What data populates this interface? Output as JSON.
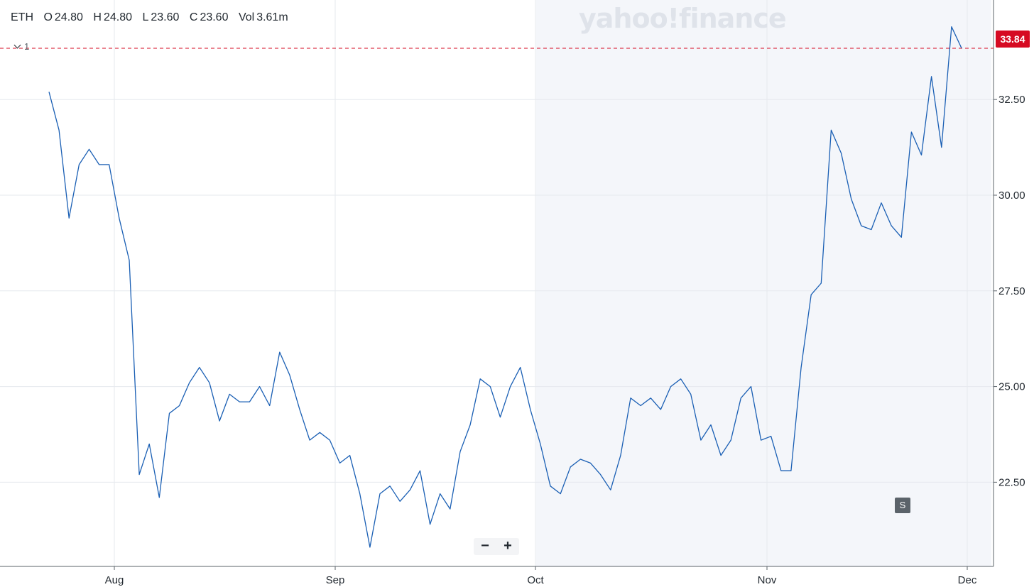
{
  "info_bar": {
    "symbol": "ETH",
    "open_label": "O",
    "open": "24.80",
    "high_label": "H",
    "high": "24.80",
    "low_label": "L",
    "low": "23.60",
    "close_label": "C",
    "close": "23.60",
    "volume_label": "Vol",
    "volume": "3.61m"
  },
  "indicator_toggle": {
    "count": "1"
  },
  "watermark": "yahoo!finance",
  "current_price": "33.84",
  "zoom": {
    "minus": "−",
    "plus": "+"
  },
  "split_badge": "S",
  "colors": {
    "line": "#1a5fb4",
    "price_line": "#d60a22",
    "price_badge": "#d60a22",
    "shaded_band": "#f4f6fa",
    "grid": "#e6e9ee",
    "axis": "#232a31"
  },
  "chart_data": {
    "type": "line",
    "title": "",
    "xlabel": "",
    "ylabel": "",
    "ylim": [
      20.3,
      35.1
    ],
    "yticks": [
      22.5,
      25.0,
      27.5,
      30.0,
      32.5
    ],
    "ytick_labels": [
      "22.50",
      "25.00",
      "27.50",
      "30.00",
      "32.50"
    ],
    "xticks": [
      "Aug",
      "Sep",
      "Oct",
      "Nov",
      "Dec"
    ],
    "grid": true,
    "y_axis_side": "right",
    "current_price": 33.84,
    "series": [
      {
        "values": [
          32.7,
          31.7,
          29.4,
          30.8,
          31.2,
          30.8,
          30.8,
          29.4,
          28.3,
          22.7,
          23.5,
          22.1,
          24.3,
          24.5,
          25.1,
          25.5,
          25.1,
          24.1,
          24.8,
          24.6,
          24.6,
          25.0,
          24.5,
          25.9,
          25.3,
          24.4,
          23.6,
          23.8,
          23.6,
          23.0,
          23.2,
          22.2,
          20.8,
          22.2,
          22.4,
          22.0,
          22.3,
          22.8,
          21.4,
          22.2,
          21.8,
          23.3,
          24.0,
          25.2,
          25.0,
          24.2,
          25.0,
          25.5,
          24.4,
          23.5,
          22.4,
          22.2,
          22.9,
          23.1,
          23.0,
          22.7,
          22.3,
          23.2,
          24.7,
          24.5,
          24.7,
          24.4,
          25.0,
          25.2,
          24.8,
          23.6,
          24.0,
          23.2,
          23.6,
          24.7,
          25.0,
          23.6,
          23.7,
          22.8,
          22.8,
          25.5,
          27.4,
          27.7,
          31.7,
          31.1,
          29.9,
          29.2,
          29.1,
          29.8,
          29.2,
          28.9,
          31.65,
          31.05,
          33.1,
          31.25,
          34.4,
          33.84
        ]
      }
    ]
  }
}
